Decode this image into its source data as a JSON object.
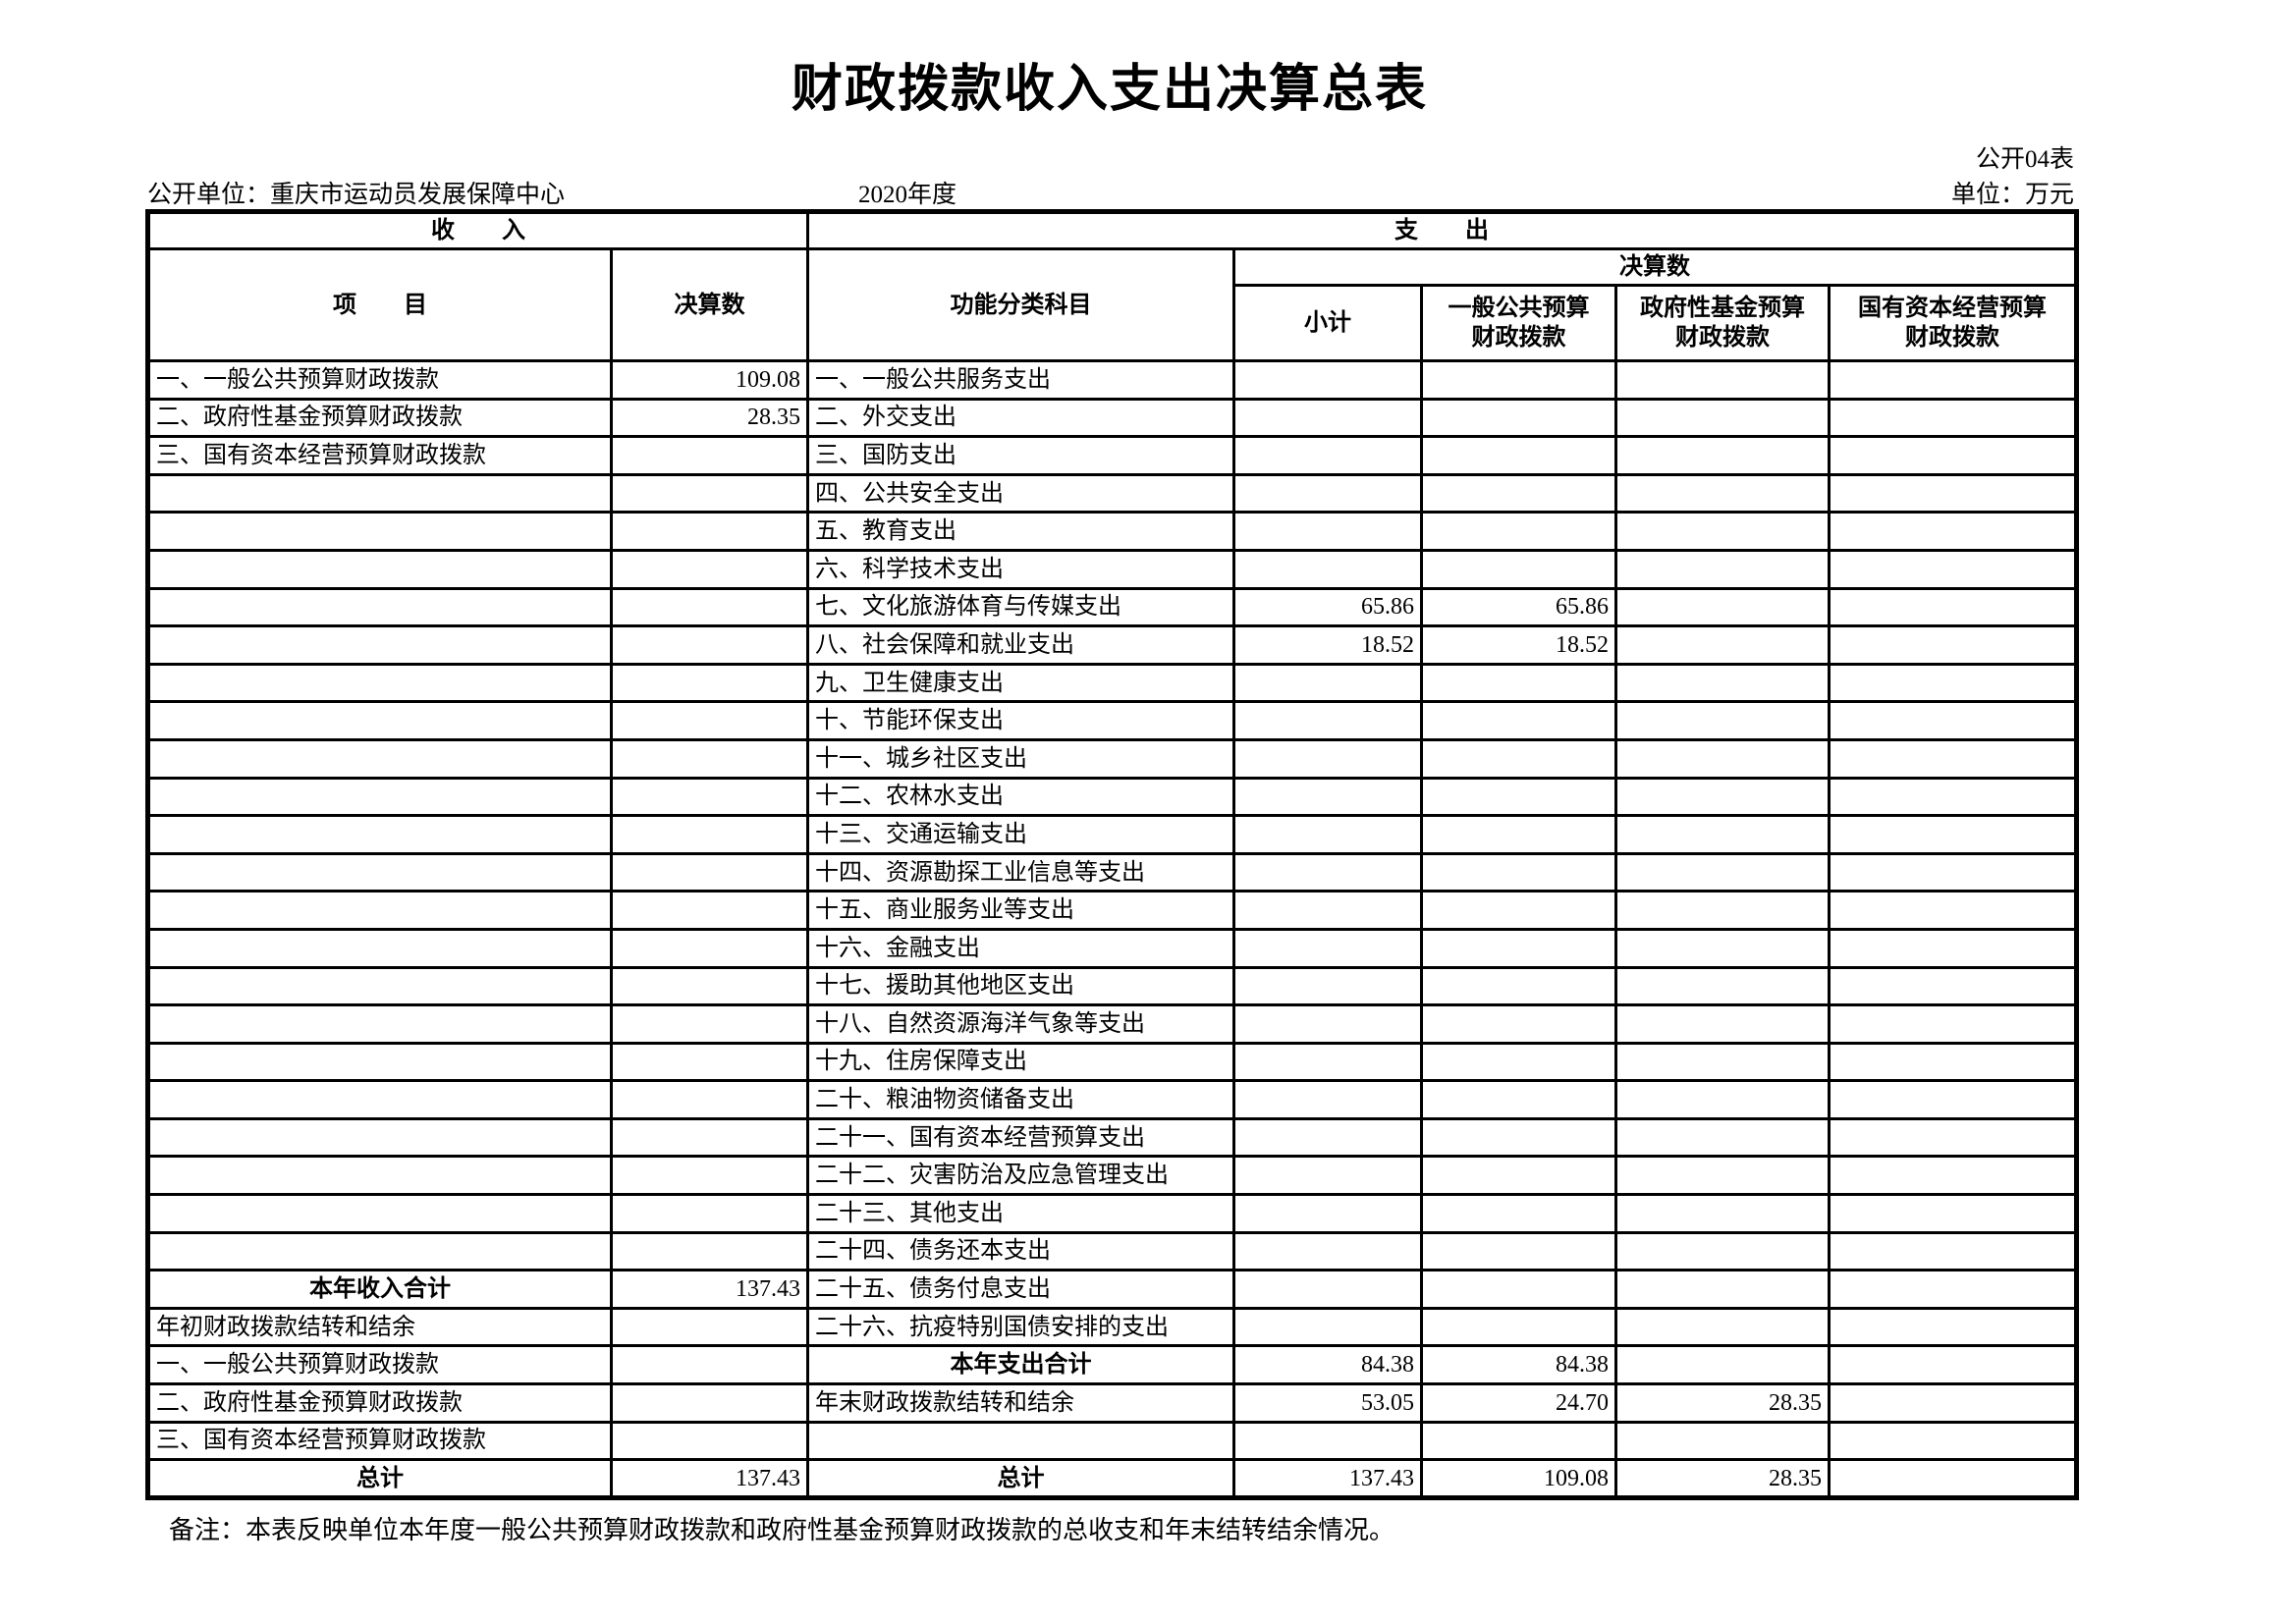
{
  "page": {
    "title": "财政拨款收入支出决算总表",
    "table_code": "公开04表",
    "publisher": "公开单位：重庆市运动员发展保障中心",
    "fiscal_year": "2020年度",
    "unit_of_measure": "单位：万元",
    "note": "备注：本表反映单位本年度一般公共预算财政拨款和政府性基金预算财政拨款的总收支和年末结转结余情况。"
  },
  "table": {
    "sections": {
      "income": "收　　入",
      "expense": "支　　出"
    },
    "headers": {
      "item": "项　　目",
      "amount": "决算数",
      "functional_subject": "功能分类科目",
      "amount_group": "决算数",
      "subtotal": "小计",
      "general_public_budget": "一般公共预算\n财政拨款",
      "government_fund_budget": "政府性基金预算\n财政拨款",
      "state_capital_budget": "国有资本经营预算\n财政拨款"
    },
    "rows": [
      {
        "income_item": "一、一般公共预算财政拨款",
        "income_value": "109.08",
        "expense_item": "一、一般公共服务支出"
      },
      {
        "income_item": "二、政府性基金预算财政拨款",
        "income_value": "28.35",
        "expense_item": "二、外交支出"
      },
      {
        "income_item": "三、国有资本经营预算财政拨款",
        "expense_item": "三、国防支出"
      },
      {
        "expense_item": "四、公共安全支出"
      },
      {
        "expense_item": "五、教育支出"
      },
      {
        "expense_item": "六、科学技术支出"
      },
      {
        "expense_item": "七、文化旅游体育与传媒支出",
        "subtotal": "65.86",
        "general": "65.86"
      },
      {
        "expense_item": "八、社会保障和就业支出",
        "subtotal": "18.52",
        "general": "18.52"
      },
      {
        "expense_item": "九、卫生健康支出"
      },
      {
        "expense_item": "十、节能环保支出"
      },
      {
        "expense_item": "十一、城乡社区支出"
      },
      {
        "expense_item": "十二、农林水支出"
      },
      {
        "expense_item": "十三、交通运输支出"
      },
      {
        "expense_item": "十四、资源勘探工业信息等支出"
      },
      {
        "expense_item": "十五、商业服务业等支出"
      },
      {
        "expense_item": "十六、金融支出"
      },
      {
        "expense_item": "十七、援助其他地区支出"
      },
      {
        "expense_item": "十八、自然资源海洋气象等支出"
      },
      {
        "expense_item": "十九、住房保障支出"
      },
      {
        "expense_item": "二十、粮油物资储备支出"
      },
      {
        "expense_item": "二十一、国有资本经营预算支出"
      },
      {
        "expense_item": "二十二、灾害防治及应急管理支出"
      },
      {
        "expense_item": "二十三、其他支出"
      },
      {
        "expense_item": "二十四、债务还本支出"
      },
      {
        "income_item": "本年收入合计",
        "income_total": true,
        "income_value": "137.43",
        "expense_item": "二十五、债务付息支出"
      },
      {
        "income_item": "年初财政拨款结转和结余",
        "expense_item": "二十六、抗疫特别国债安排的支出"
      },
      {
        "income_item": "一、一般公共预算财政拨款",
        "expense_item": "本年支出合计",
        "expense_total": true,
        "subtotal": "84.38",
        "general": "84.38"
      },
      {
        "income_item": "二、政府性基金预算财政拨款",
        "expense_item": "年末财政拨款结转和结余",
        "subtotal": "53.05",
        "general": "24.70",
        "fund": "28.35"
      },
      {
        "income_item": "三、国有资本经营预算财政拨款"
      },
      {
        "income_item": "总计",
        "income_total": true,
        "income_value": "137.43",
        "expense_item": "总计",
        "expense_total": true,
        "subtotal": "137.43",
        "general": "109.08",
        "fund": "28.35"
      }
    ]
  }
}
